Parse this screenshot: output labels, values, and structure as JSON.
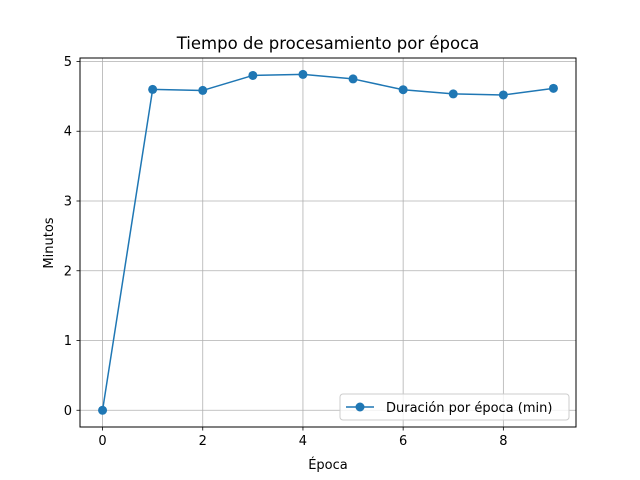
{
  "chart_data": {
    "type": "line",
    "title": "Tiempo de procesamiento por época",
    "xlabel": "Época",
    "ylabel": "Minutos",
    "x": [
      0,
      1,
      2,
      3,
      4,
      5,
      6,
      7,
      8,
      9
    ],
    "series": [
      {
        "name": "Duración por época (min)",
        "values": [
          0.0,
          4.6,
          4.585,
          4.8,
          4.815,
          4.75,
          4.595,
          4.535,
          4.52,
          4.615
        ],
        "color": "#1f77b4",
        "marker": "circle"
      }
    ],
    "xlim": [
      -0.45,
      9.45
    ],
    "ylim": [
      -0.24,
      5.05
    ],
    "xticks": [
      0,
      2,
      4,
      6,
      8
    ],
    "yticks": [
      0,
      1,
      2,
      3,
      4,
      5
    ],
    "xtick_labels": [
      "0",
      "2",
      "4",
      "6",
      "8"
    ],
    "ytick_labels": [
      "0",
      "1",
      "2",
      "3",
      "4",
      "5"
    ],
    "grid": true,
    "legend_position": "lower-right"
  }
}
